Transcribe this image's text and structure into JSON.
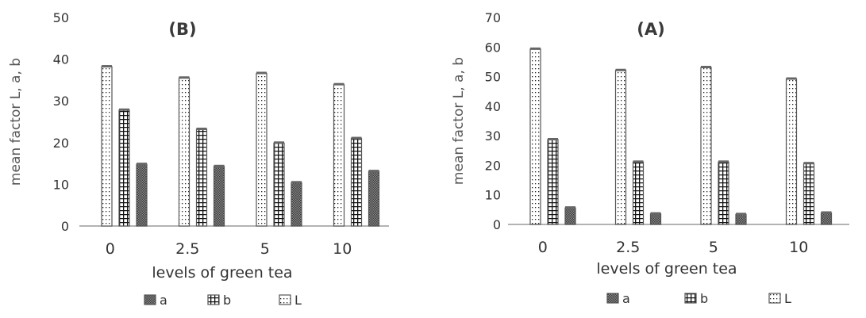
{
  "colors": {
    "axis": "#9a9a9a",
    "bar_stroke": "#555555",
    "text": "#333333",
    "title": "#3a3a3a"
  },
  "chart_data": [
    {
      "type": "bar",
      "title": "(B)",
      "xlabel": "levels of green tea",
      "ylabel": "mean factor L, a, b",
      "categories": [
        "0",
        "2.5",
        "5",
        "10"
      ],
      "yticks": [
        "0",
        "10",
        "20",
        "30",
        "40",
        "50"
      ],
      "ylim": [
        0,
        50
      ],
      "grid": false,
      "legend_position": "bottom",
      "series": [
        {
          "name": "L",
          "pattern": "dots",
          "values": [
            38.2,
            35.5,
            36.6,
            33.9
          ]
        },
        {
          "name": "b",
          "pattern": "grid",
          "values": [
            27.8,
            23.2,
            19.9,
            21.0
          ]
        },
        {
          "name": "a",
          "pattern": "cross",
          "values": [
            14.8,
            14.3,
            10.4,
            13.1
          ]
        }
      ],
      "legend_order": [
        "a",
        "b",
        "L"
      ]
    },
    {
      "type": "bar",
      "title": "(A)",
      "xlabel": "levels of green tea",
      "ylabel": "mean factor L, a, b",
      "categories": [
        "0",
        "2.5",
        "5",
        "10"
      ],
      "yticks": [
        "0",
        "10",
        "20",
        "30",
        "40",
        "50",
        "60",
        "70"
      ],
      "ylim": [
        0,
        70
      ],
      "grid": false,
      "legend_position": "bottom",
      "series": [
        {
          "name": "L",
          "pattern": "dots",
          "values": [
            59.3,
            52.1,
            53.1,
            49.2
          ]
        },
        {
          "name": "b",
          "pattern": "grid",
          "values": [
            28.7,
            21.1,
            21.1,
            20.6
          ]
        },
        {
          "name": "a",
          "pattern": "cross",
          "values": [
            5.6,
            3.6,
            3.4,
            3.9
          ]
        }
      ],
      "legend_order": [
        "a",
        "b",
        "L"
      ]
    }
  ]
}
